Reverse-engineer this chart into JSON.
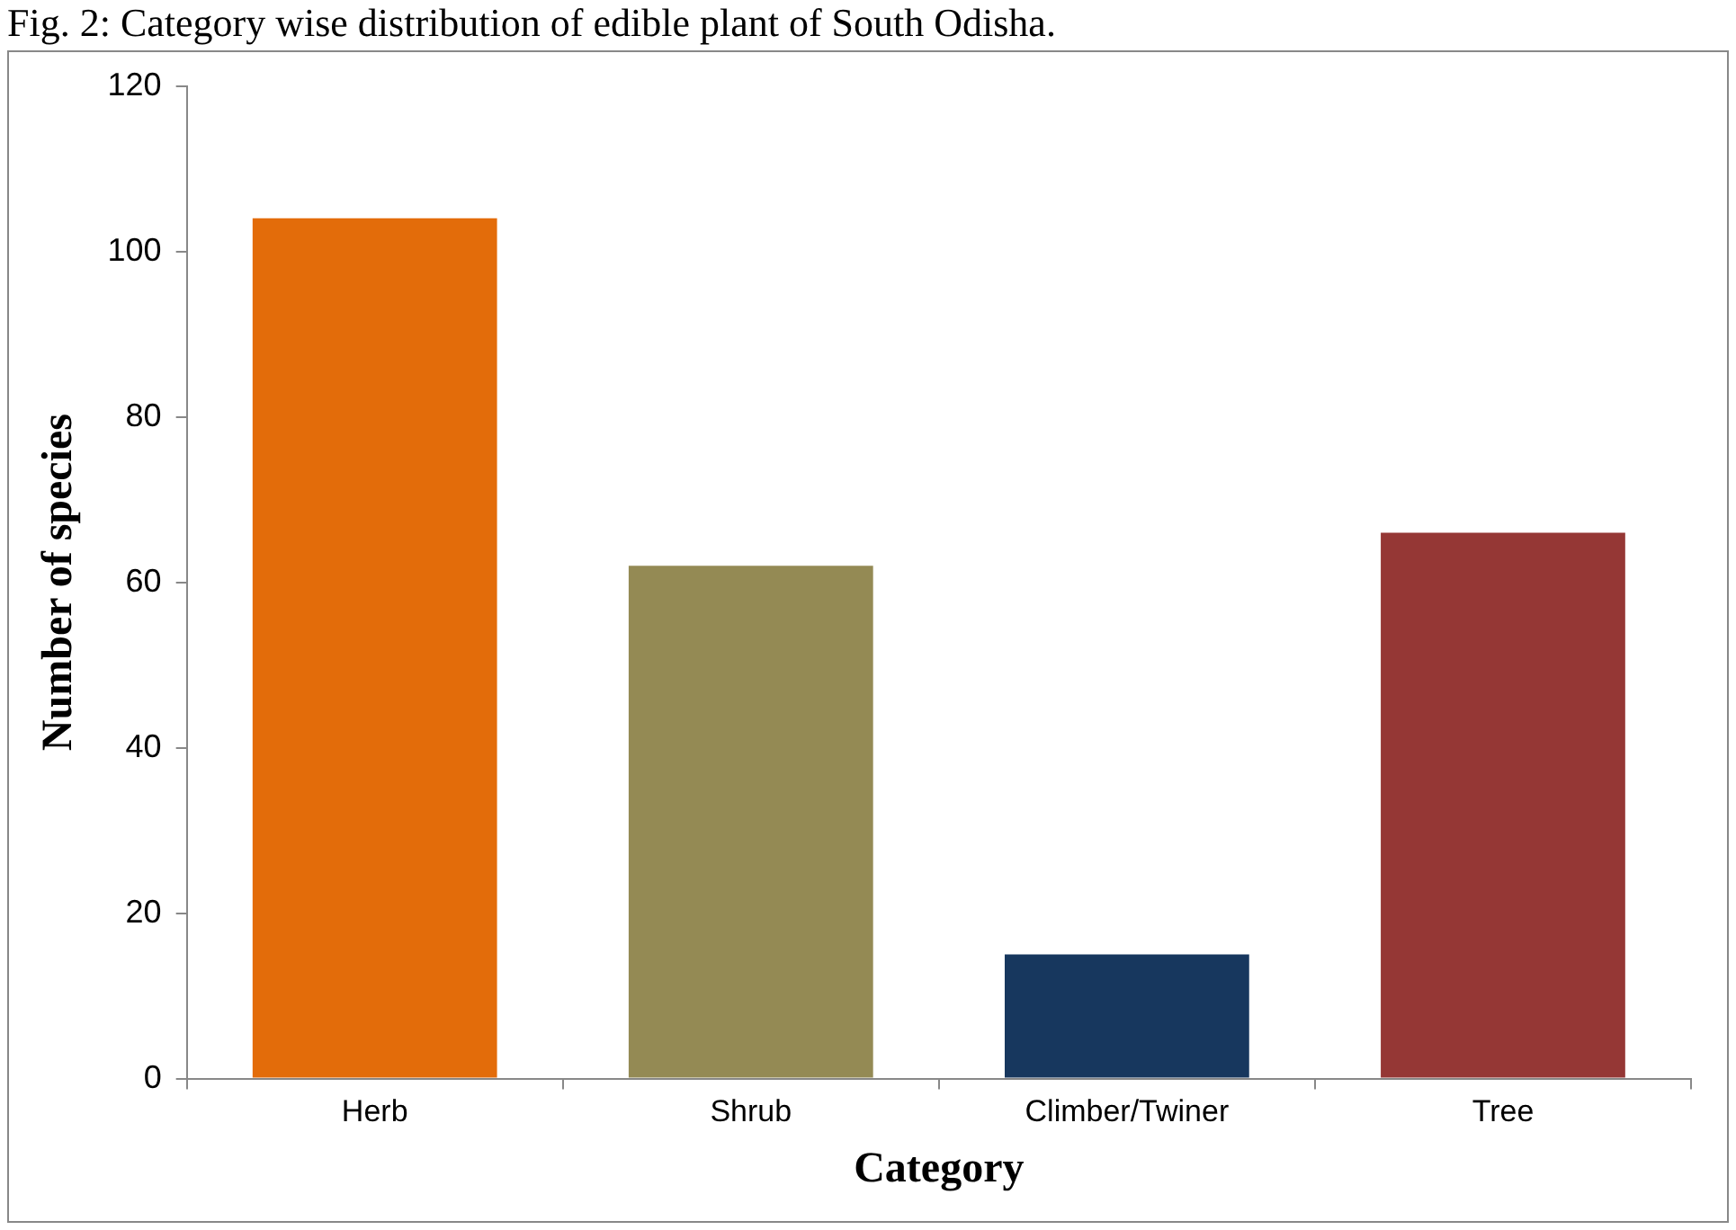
{
  "chart_data": {
    "type": "bar",
    "title": "Fig. 2: Category wise distribution of edible plant of South Odisha.",
    "xlabel": "Category",
    "ylabel": "Number of species",
    "categories": [
      "Herb",
      "Shrub",
      "Climber/Twiner",
      "Tree"
    ],
    "values": [
      104,
      62,
      15,
      66
    ],
    "colors": [
      "#e36c0a",
      "#948a54",
      "#17375e",
      "#953735"
    ],
    "ylim": [
      0,
      120
    ],
    "yticks": [
      0,
      20,
      40,
      60,
      80,
      100,
      120
    ]
  }
}
